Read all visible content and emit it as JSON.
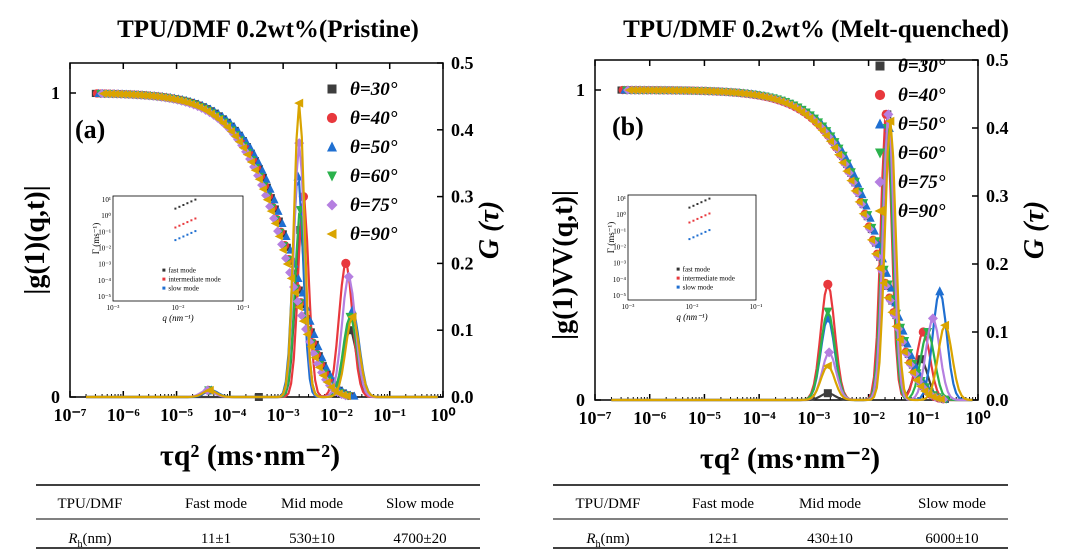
{
  "chart_data": [
    {
      "type": "scatter",
      "panel_label": "(a)",
      "title": "TPU/DMF 0.2wt%(Pristine)",
      "xlabel": "τq² (ms·nm⁻²)",
      "ylabel_left": "|g(1)(q,t)|",
      "ylabel_right": "G (τ)",
      "x_scale": "log",
      "xlim": [
        1e-07,
        1
      ],
      "x_ticks": [
        "10⁻⁷",
        "10⁻⁶",
        "10⁻⁵",
        "10⁻⁴",
        "10⁻³",
        "10⁻²",
        "10⁻¹",
        "10⁰"
      ],
      "left_ticks": [
        "0",
        "1"
      ],
      "right_ticks": [
        "0.0",
        "0.1",
        "0.2",
        "0.3",
        "0.4",
        "0.5"
      ],
      "ylim_left": [
        0,
        1.1
      ],
      "ylim_right": [
        0,
        0.5
      ],
      "legend": [
        "θ=30°",
        "θ=40°",
        "θ=50°",
        "θ=60°",
        "θ=75°",
        "θ=90°"
      ],
      "legend_position": "top-right",
      "series": [
        {
          "name": "θ=30°",
          "color": "#3d3d3d",
          "marker": "square",
          "decay_mid": 0.00135,
          "peaks": [
            [
              0.00035,
              0.0
            ],
            [
              0.0021,
              0.25
            ],
            [
              0.018,
              0.1
            ]
          ]
        },
        {
          "name": "θ=40°",
          "color": "#e8383d",
          "marker": "circle",
          "decay_mid": 0.00125,
          "peaks": [
            [
              4e-05,
              0.01
            ],
            [
              0.0024,
              0.3
            ],
            [
              0.015,
              0.2
            ]
          ]
        },
        {
          "name": "θ=50°",
          "color": "#1f6fd1",
          "marker": "triangle-up",
          "decay_mid": 0.0015,
          "peaks": [
            [
              4.5e-05,
              0.01
            ],
            [
              0.0019,
              0.33
            ],
            [
              0.02,
              0.13
            ]
          ]
        },
        {
          "name": "θ=60°",
          "color": "#2bb24c",
          "marker": "triangle-down",
          "decay_mid": 0.0012,
          "peaks": [
            [
              4e-05,
              0.01
            ],
            [
              0.0021,
              0.28
            ],
            [
              0.018,
              0.12
            ]
          ]
        },
        {
          "name": "θ=75°",
          "color": "#b57fe0",
          "marker": "diamond",
          "decay_mid": 0.0011,
          "peaks": [
            [
              3.8e-05,
              0.01
            ],
            [
              0.002,
              0.38
            ],
            [
              0.017,
              0.18
            ]
          ]
        },
        {
          "name": "θ=90°",
          "color": "#d9a400",
          "marker": "triangle-left",
          "decay_mid": 0.0011,
          "peaks": [
            [
              4.2e-05,
              0.01
            ],
            [
              0.002,
              0.44
            ],
            [
              0.02,
              0.12
            ]
          ]
        }
      ]
    },
    {
      "type": "scatter",
      "panel_label": "(b)",
      "title": "TPU/DMF 0.2wt% (Melt-quenched)",
      "xlabel": "τq² (ms·nm⁻²)",
      "ylabel_left": "|g(1)VV(q,t)|",
      "ylabel_right": "G (τ)",
      "x_scale": "log",
      "xlim": [
        1e-07,
        1
      ],
      "x_ticks": [
        "10⁻⁷",
        "10⁻⁶",
        "10⁻⁵",
        "10⁻⁴",
        "10⁻³",
        "10⁻²",
        "10⁻¹",
        "10⁰"
      ],
      "left_ticks": [
        "0",
        "1"
      ],
      "right_ticks": [
        "0.0",
        "0.1",
        "0.2",
        "0.3",
        "0.4",
        "0.5"
      ],
      "ylim_left": [
        0,
        1.1
      ],
      "ylim_right": [
        0,
        0.5
      ],
      "legend": [
        "θ=30°",
        "θ=40°",
        "θ=50°",
        "θ=60°",
        "θ=75°",
        "θ=90°"
      ],
      "legend_position": "top-right",
      "series": [
        {
          "name": "θ=30°",
          "color": "#3d3d3d",
          "marker": "square",
          "decay_mid": 0.016,
          "peaks": [
            [
              0.0018,
              0.01
            ],
            [
              0.022,
              0.42
            ],
            [
              0.09,
              0.06
            ]
          ]
        },
        {
          "name": "θ=40°",
          "color": "#e8383d",
          "marker": "circle",
          "decay_mid": 0.015,
          "peaks": [
            [
              0.0018,
              0.17
            ],
            [
              0.021,
              0.42
            ],
            [
              0.1,
              0.1
            ]
          ]
        },
        {
          "name": "θ=50°",
          "color": "#1f6fd1",
          "marker": "triangle-up",
          "decay_mid": 0.018,
          "peaks": [
            [
              0.0018,
              0.12
            ],
            [
              0.024,
              0.4
            ],
            [
              0.2,
              0.16
            ]
          ]
        },
        {
          "name": "θ=60°",
          "color": "#2bb24c",
          "marker": "triangle-down",
          "decay_mid": 0.017,
          "peaks": [
            [
              0.0018,
              0.13
            ],
            [
              0.022,
              0.4
            ],
            [
              0.12,
              0.1
            ]
          ]
        },
        {
          "name": "θ=75°",
          "color": "#b57fe0",
          "marker": "diamond",
          "decay_mid": 0.015,
          "peaks": [
            [
              0.0019,
              0.07
            ],
            [
              0.023,
              0.42
            ],
            [
              0.15,
              0.12
            ]
          ]
        },
        {
          "name": "θ=90°",
          "color": "#d9a400",
          "marker": "triangle-left",
          "decay_mid": 0.014,
          "peaks": [
            [
              0.0018,
              0.05
            ],
            [
              0.025,
              0.41
            ],
            [
              0.25,
              0.11
            ]
          ]
        }
      ]
    }
  ],
  "inset": {
    "y_label": "Γ (ms⁻¹)",
    "x_label": "q (nm⁻¹)",
    "x_ticks": [
      "10⁻³",
      "10⁻²",
      "10⁻¹"
    ],
    "y_ticks": [
      "10¹",
      "10⁰",
      "10⁻¹",
      "10⁻²",
      "10⁻³",
      "10⁻⁴",
      "10⁻⁵"
    ],
    "legend": [
      {
        "label": "fast mode",
        "color": "#333333"
      },
      {
        "label": "intermediate mode",
        "color": "#e8383d"
      },
      {
        "label": "slow mode",
        "color": "#1f6fd1"
      }
    ]
  },
  "tables": [
    {
      "headers": [
        "TPU/DMF",
        "Fast mode",
        "Mid mode",
        "Slow mode"
      ],
      "row_label": "R",
      "row_label_sub": "h",
      "row_label_unit": "(nm)",
      "values": [
        "11±1",
        "530±10",
        "4700±20"
      ]
    },
    {
      "headers": [
        "TPU/DMF",
        "Fast mode",
        "Mid mode",
        "Slow mode"
      ],
      "row_label": "R",
      "row_label_sub": "h",
      "row_label_unit": "(nm)",
      "values": [
        "12±1",
        "430±10",
        "6000±10"
      ]
    }
  ]
}
